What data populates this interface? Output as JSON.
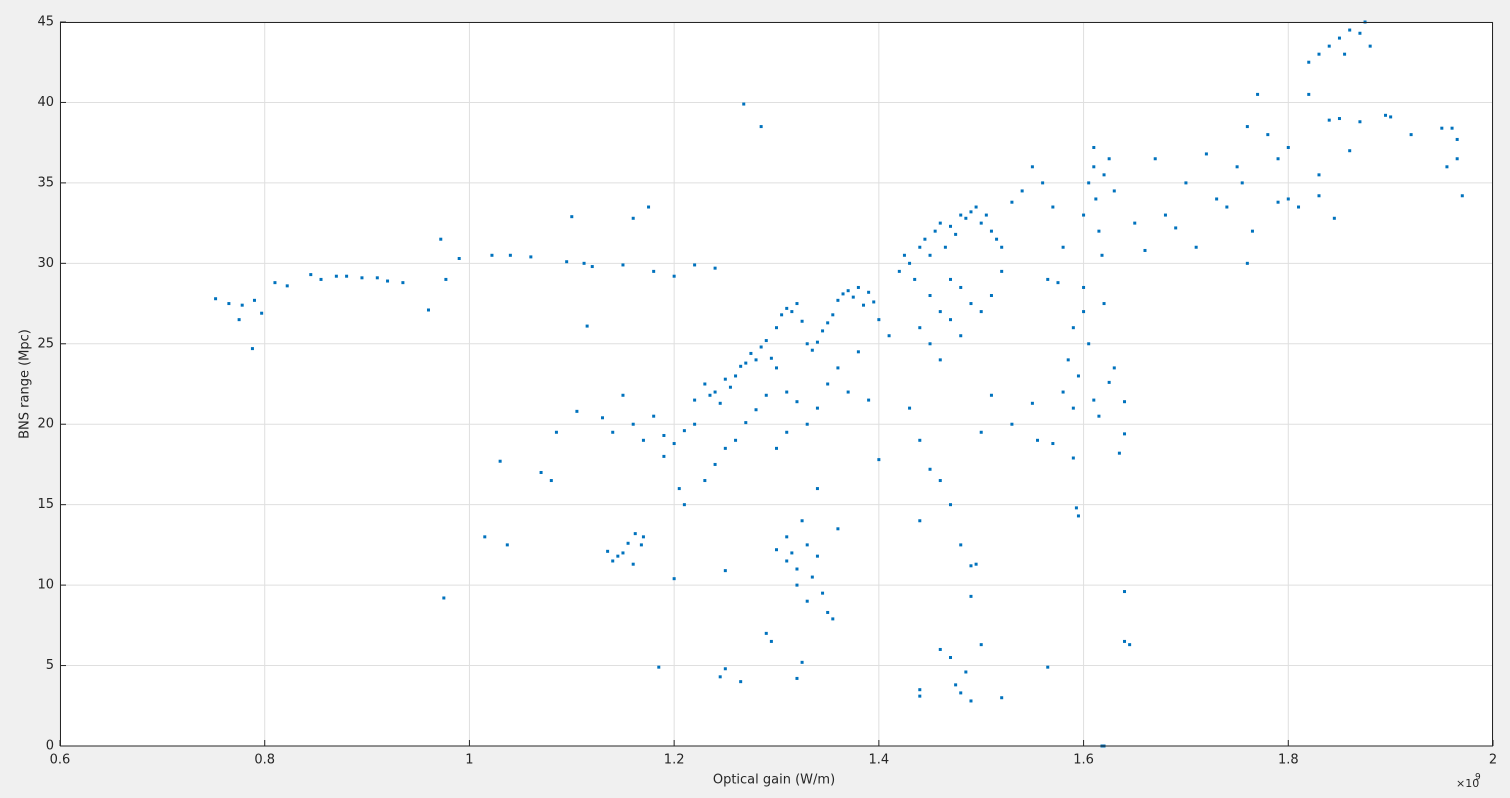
{
  "chart_data": {
    "type": "scatter",
    "xlabel": "Optical gain (W/m)",
    "ylabel": "BNS range (Mpc)",
    "x_exponent": {
      "base": "×10",
      "power": "9"
    },
    "color": "#0072bd",
    "grid": true,
    "xlim": [
      0.6,
      2
    ],
    "ylim": [
      0,
      45
    ],
    "xticks": [
      0.6,
      0.8,
      1,
      1.2,
      1.4,
      1.6,
      1.8,
      2
    ],
    "yticks": [
      0,
      5,
      10,
      15,
      20,
      25,
      30,
      35,
      40,
      45
    ],
    "x": [
      0.752,
      0.765,
      0.775,
      0.778,
      0.788,
      0.79,
      0.797,
      0.81,
      0.822,
      0.845,
      0.855,
      0.87,
      0.88,
      0.895,
      0.91,
      0.92,
      0.935,
      0.96,
      0.972,
      0.975,
      0.977,
      0.99,
      1.015,
      1.022,
      1.03,
      1.037,
      1.04,
      1.06,
      1.07,
      1.08,
      1.085,
      1.095,
      1.1,
      1.105,
      1.112,
      1.115,
      1.12,
      1.13,
      1.135,
      1.14,
      1.145,
      1.15,
      1.155,
      1.16,
      1.162,
      1.168,
      1.17,
      1.15,
      1.16,
      1.175,
      1.14,
      1.15,
      1.16,
      1.18,
      1.185,
      1.19,
      1.2,
      1.2,
      1.205,
      1.21,
      1.22,
      1.24,
      1.25,
      1.245,
      1.25,
      1.265,
      1.268,
      1.285,
      1.29,
      1.295,
      1.32,
      1.325,
      1.22,
      1.23,
      1.235,
      1.24,
      1.245,
      1.25,
      1.255,
      1.26,
      1.265,
      1.27,
      1.275,
      1.28,
      1.285,
      1.29,
      1.295,
      1.3,
      1.305,
      1.31,
      1.315,
      1.32,
      1.325,
      1.33,
      1.335,
      1.34,
      1.345,
      1.35,
      1.355,
      1.36,
      1.365,
      1.37,
      1.375,
      1.38,
      1.385,
      1.39,
      1.395,
      1.3,
      1.31,
      1.32,
      1.29,
      1.28,
      1.27,
      1.26,
      1.25,
      1.24,
      1.23,
      1.22,
      1.21,
      1.2,
      1.19,
      1.18,
      1.17,
      1.3,
      1.31,
      1.33,
      1.34,
      1.35,
      1.36,
      1.37,
      1.38,
      1.39,
      1.4,
      1.4,
      1.41,
      1.42,
      1.425,
      1.43,
      1.435,
      1.44,
      1.445,
      1.45,
      1.455,
      1.46,
      1.465,
      1.47,
      1.475,
      1.48,
      1.485,
      1.49,
      1.495,
      1.5,
      1.505,
      1.51,
      1.515,
      1.52,
      1.45,
      1.46,
      1.47,
      1.48,
      1.49,
      1.44,
      1.45,
      1.46,
      1.47,
      1.48,
      1.5,
      1.51,
      1.52,
      1.53,
      1.54,
      1.55,
      1.56,
      1.57,
      1.58,
      1.565,
      1.575,
      1.43,
      1.44,
      1.45,
      1.46,
      1.47,
      1.44,
      1.48,
      1.49,
      1.495,
      1.49,
      1.5,
      1.485,
      1.48,
      1.475,
      1.47,
      1.46,
      1.44,
      1.44,
      1.49,
      1.52,
      1.565,
      1.53,
      1.5,
      1.51,
      1.55,
      1.555,
      1.57,
      1.59,
      1.593,
      1.595,
      1.31,
      1.315,
      1.32,
      1.325,
      1.33,
      1.335,
      1.34,
      1.345,
      1.35,
      1.355,
      1.34,
      1.33,
      1.32,
      1.31,
      1.3,
      1.36,
      1.58,
      1.585,
      1.59,
      1.595,
      1.6,
      1.605,
      1.61,
      1.615,
      1.62,
      1.625,
      1.63,
      1.59,
      1.6,
      1.6,
      1.605,
      1.61,
      1.612,
      1.615,
      1.62,
      1.625,
      1.63,
      1.61,
      1.618,
      1.618,
      1.62,
      1.64,
      1.64,
      1.645,
      1.64,
      1.64,
      1.635,
      1.65,
      1.66,
      1.67,
      1.68,
      1.69,
      1.7,
      1.71,
      1.72,
      1.73,
      1.74,
      1.75,
      1.755,
      1.76,
      1.765,
      1.76,
      1.77,
      1.78,
      1.79,
      1.8,
      1.81,
      1.82,
      1.83,
      1.84,
      1.85,
      1.855,
      1.86,
      1.87,
      1.875,
      1.88,
      1.84,
      1.85,
      1.86,
      1.87,
      1.895,
      1.9,
      1.92,
      1.95,
      1.955,
      1.96,
      1.965,
      1.965,
      1.97,
      1.8,
      1.82,
      1.83,
      1.79,
      1.845,
      1.83
    ],
    "values": [
      27.8,
      27.5,
      26.5,
      27.4,
      24.7,
      27.7,
      26.9,
      28.8,
      28.6,
      29.3,
      29.0,
      29.2,
      29.2,
      29.1,
      29.1,
      28.9,
      28.8,
      27.1,
      31.5,
      9.2,
      29.0,
      30.3,
      13.0,
      30.5,
      17.7,
      12.5,
      30.5,
      30.4,
      17.0,
      16.5,
      19.5,
      30.1,
      32.9,
      20.8,
      30.0,
      26.1,
      29.8,
      20.4,
      12.1,
      11.5,
      11.8,
      12.0,
      12.6,
      11.3,
      13.2,
      12.5,
      13.0,
      29.9,
      32.8,
      33.5,
      19.5,
      21.8,
      20.0,
      29.5,
      4.9,
      19.3,
      10.4,
      29.2,
      16.0,
      15.0,
      29.9,
      29.7,
      10.9,
      4.3,
      4.8,
      4.0,
      39.9,
      38.5,
      7.0,
      6.5,
      4.2,
      5.2,
      21.5,
      22.5,
      21.8,
      22.0,
      21.3,
      22.8,
      22.3,
      23.0,
      23.6,
      23.8,
      24.4,
      24.0,
      24.8,
      25.2,
      24.1,
      26.0,
      26.8,
      27.2,
      27.0,
      27.5,
      26.4,
      25.0,
      24.6,
      25.1,
      25.8,
      26.3,
      26.8,
      27.7,
      28.1,
      28.3,
      27.9,
      28.5,
      27.4,
      28.2,
      27.6,
      23.5,
      22.0,
      21.4,
      21.8,
      20.9,
      20.1,
      19.0,
      18.5,
      17.5,
      16.5,
      20.0,
      19.6,
      18.8,
      18.0,
      20.5,
      19.0,
      18.5,
      19.5,
      20.0,
      21.0,
      22.5,
      23.5,
      22.0,
      24.5,
      21.5,
      17.8,
      26.5,
      25.5,
      29.5,
      30.5,
      30.0,
      29.0,
      31.0,
      31.5,
      30.5,
      32.0,
      32.5,
      31.0,
      32.3,
      31.8,
      33.0,
      32.8,
      33.2,
      33.5,
      32.5,
      33.0,
      32.0,
      31.5,
      31.0,
      28.0,
      27.0,
      29.0,
      28.5,
      27.5,
      26.0,
      25.0,
      24.0,
      26.5,
      25.5,
      27.0,
      28.0,
      29.5,
      33.8,
      34.5,
      36.0,
      35.0,
      33.5,
      31.0,
      29.0,
      28.8,
      21.0,
      19.0,
      17.2,
      16.5,
      15.0,
      14.0,
      12.5,
      11.2,
      11.3,
      9.3,
      6.3,
      4.6,
      3.3,
      3.8,
      5.5,
      6.0,
      3.1,
      3.5,
      2.8,
      3.0,
      4.9,
      20.0,
      19.5,
      21.8,
      21.3,
      19.0,
      18.8,
      17.9,
      14.8,
      14.3,
      13,
      12,
      11,
      14,
      12.5,
      10.5,
      11.8,
      9.5,
      8.3,
      7.9,
      16,
      9,
      10,
      11.5,
      12.2,
      13.5,
      22,
      24,
      26,
      23,
      27,
      25,
      21.5,
      20.5,
      27.5,
      22.6,
      23.5,
      21.0,
      28.5,
      33,
      35,
      36,
      34,
      32,
      35.5,
      36.5,
      34.5,
      37.2,
      30.5,
      0,
      0,
      9.6,
      6.5,
      6.3,
      19.4,
      21.4,
      18.2,
      32.5,
      30.8,
      36.5,
      33,
      32.2,
      35,
      31,
      36.8,
      34,
      33.5,
      36,
      35,
      38.5,
      32,
      30,
      40.5,
      38,
      36.5,
      34,
      33.5,
      42.5,
      43,
      43.5,
      44,
      43,
      44.5,
      44.3,
      45,
      43.5,
      38.9,
      39,
      37,
      38.8,
      39.2,
      39.1,
      38,
      38.4,
      36,
      38.4,
      36.5,
      37.7,
      34.2,
      37.2,
      40.5,
      34.2,
      33.8,
      32.8,
      35.5
    ]
  }
}
